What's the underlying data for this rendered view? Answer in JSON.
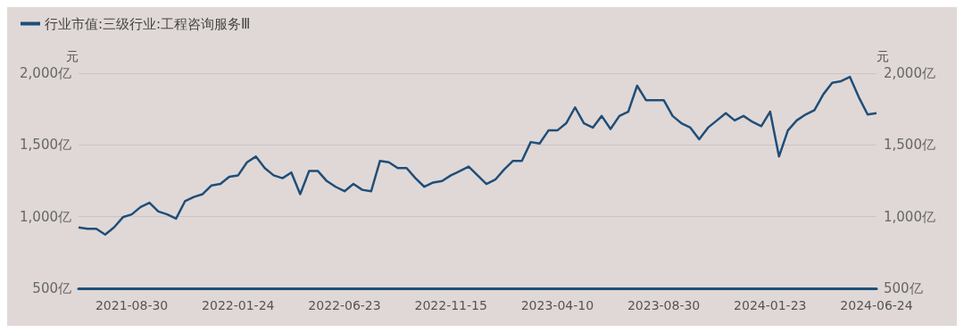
{
  "chart_data": {
    "type": "line",
    "ylabel": "元",
    "y2label": "元",
    "categories": [
      null,
      null,
      null,
      null,
      null,
      null,
      "2021-08-30",
      null,
      null,
      null,
      null,
      null,
      null,
      null,
      null,
      null,
      null,
      null,
      "2022-01-24",
      null,
      null,
      null,
      null,
      null,
      null,
      null,
      null,
      null,
      null,
      null,
      "2022-06-23",
      null,
      null,
      null,
      null,
      null,
      null,
      null,
      null,
      null,
      null,
      null,
      "2022-11-15",
      null,
      null,
      null,
      null,
      null,
      null,
      null,
      null,
      null,
      null,
      null,
      "2023-04-10",
      null,
      null,
      null,
      null,
      null,
      null,
      null,
      null,
      null,
      null,
      null,
      "2023-08-30",
      null,
      null,
      null,
      null,
      null,
      null,
      null,
      null,
      null,
      null,
      null,
      "2024-01-23",
      null,
      null,
      null,
      null,
      null,
      null,
      null,
      null,
      null,
      null,
      null,
      "2024-06-24"
    ],
    "series": [
      {
        "name": "行业市值:三级行业:工程咨询服务Ⅲ",
        "color": "#1f4e79",
        "values": [
          925,
          915,
          915,
          875,
          925,
          996,
          1016,
          1067,
          1097,
          1036,
          1016,
          986,
          1107,
          1137,
          1157,
          1218,
          1228,
          1278,
          1288,
          1379,
          1419,
          1339,
          1288,
          1268,
          1308,
          1157,
          1318,
          1318,
          1248,
          1208,
          1177,
          1228,
          1187,
          1177,
          1389,
          1379,
          1339,
          1339,
          1268,
          1208,
          1238,
          1248,
          1288,
          1318,
          1349,
          1288,
          1228,
          1258,
          1329,
          1389,
          1389,
          1520,
          1510,
          1601,
          1601,
          1651,
          1762,
          1651,
          1621,
          1702,
          1611,
          1702,
          1732,
          1913,
          1812,
          1812,
          1812,
          1702,
          1651,
          1621,
          1540,
          1621,
          1671,
          1722,
          1671,
          1702,
          1661,
          1631,
          1732,
          1419,
          1601,
          1671,
          1712,
          1742,
          1853,
          1933,
          1944,
          1974,
          1833,
          1712,
          1722
        ]
      }
    ],
    "ylim": [
      500,
      2000
    ],
    "yticks": [
      {
        "value": 500,
        "label": "500亿"
      },
      {
        "value": 1000,
        "label": "1,000亿"
      },
      {
        "value": 1500,
        "label": "1,500亿"
      },
      {
        "value": 2000,
        "label": "2,000亿"
      }
    ],
    "y2lim": [
      500,
      2000
    ],
    "y2ticks": [
      {
        "value": 500,
        "label": "500亿"
      },
      {
        "value": 1000,
        "label": "1,000亿"
      },
      {
        "value": 1500,
        "label": "1,500亿"
      },
      {
        "value": 2000,
        "label": "2,000亿"
      }
    ],
    "grid": "y",
    "legend": "top left",
    "marker": "none",
    "line_style": "solid"
  }
}
